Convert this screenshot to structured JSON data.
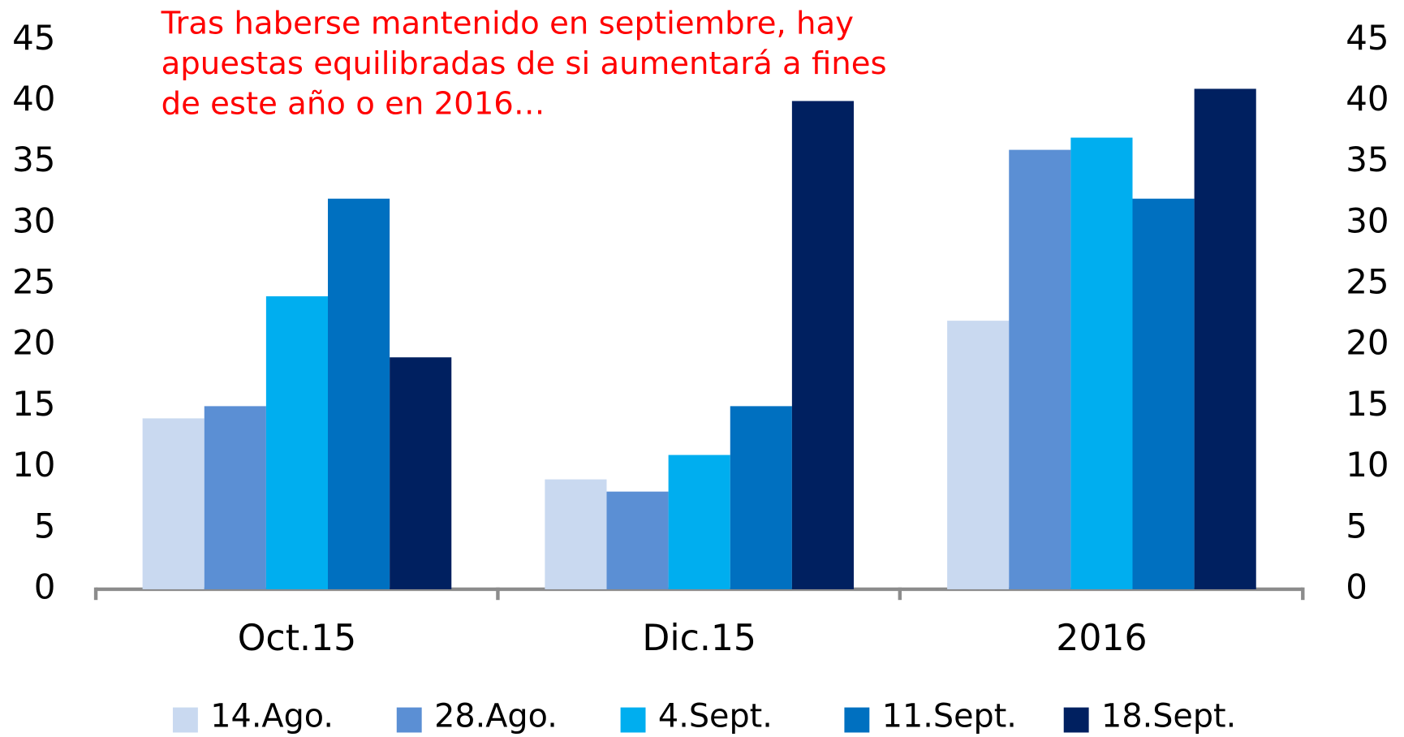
{
  "chart_data": {
    "type": "bar",
    "annotation": [
      "Tras haberse mantenido en septiembre, hay",
      "apuestas equilibradas de si aumentará a fines",
      "de este año o en 2016…"
    ],
    "annotation_color": "#ff0000",
    "categories": [
      "Oct.15",
      "Dic.15",
      "2016"
    ],
    "series": [
      {
        "name": "14.Ago.",
        "color": "#c9d9f0",
        "values": [
          14,
          9,
          22
        ]
      },
      {
        "name": "28.Ago.",
        "color": "#5b8fd4",
        "values": [
          15,
          8,
          36
        ]
      },
      {
        "name": "4.Sept.",
        "color": "#00aeef",
        "values": [
          24,
          11,
          37
        ]
      },
      {
        "name": "11.Sept.",
        "color": "#0070c0",
        "values": [
          32,
          15,
          32
        ]
      },
      {
        "name": "18.Sept.",
        "color": "#002060",
        "values": [
          19,
          40,
          41
        ]
      }
    ],
    "ylim": [
      0,
      45
    ],
    "yticks": [
      0,
      5,
      10,
      15,
      20,
      25,
      30,
      35,
      40,
      45
    ],
    "y2lim": [
      0,
      45
    ],
    "y2ticks": [
      0,
      5,
      10,
      15,
      20,
      25,
      30,
      35,
      40,
      45
    ],
    "grid": false,
    "legend": "bottom"
  }
}
